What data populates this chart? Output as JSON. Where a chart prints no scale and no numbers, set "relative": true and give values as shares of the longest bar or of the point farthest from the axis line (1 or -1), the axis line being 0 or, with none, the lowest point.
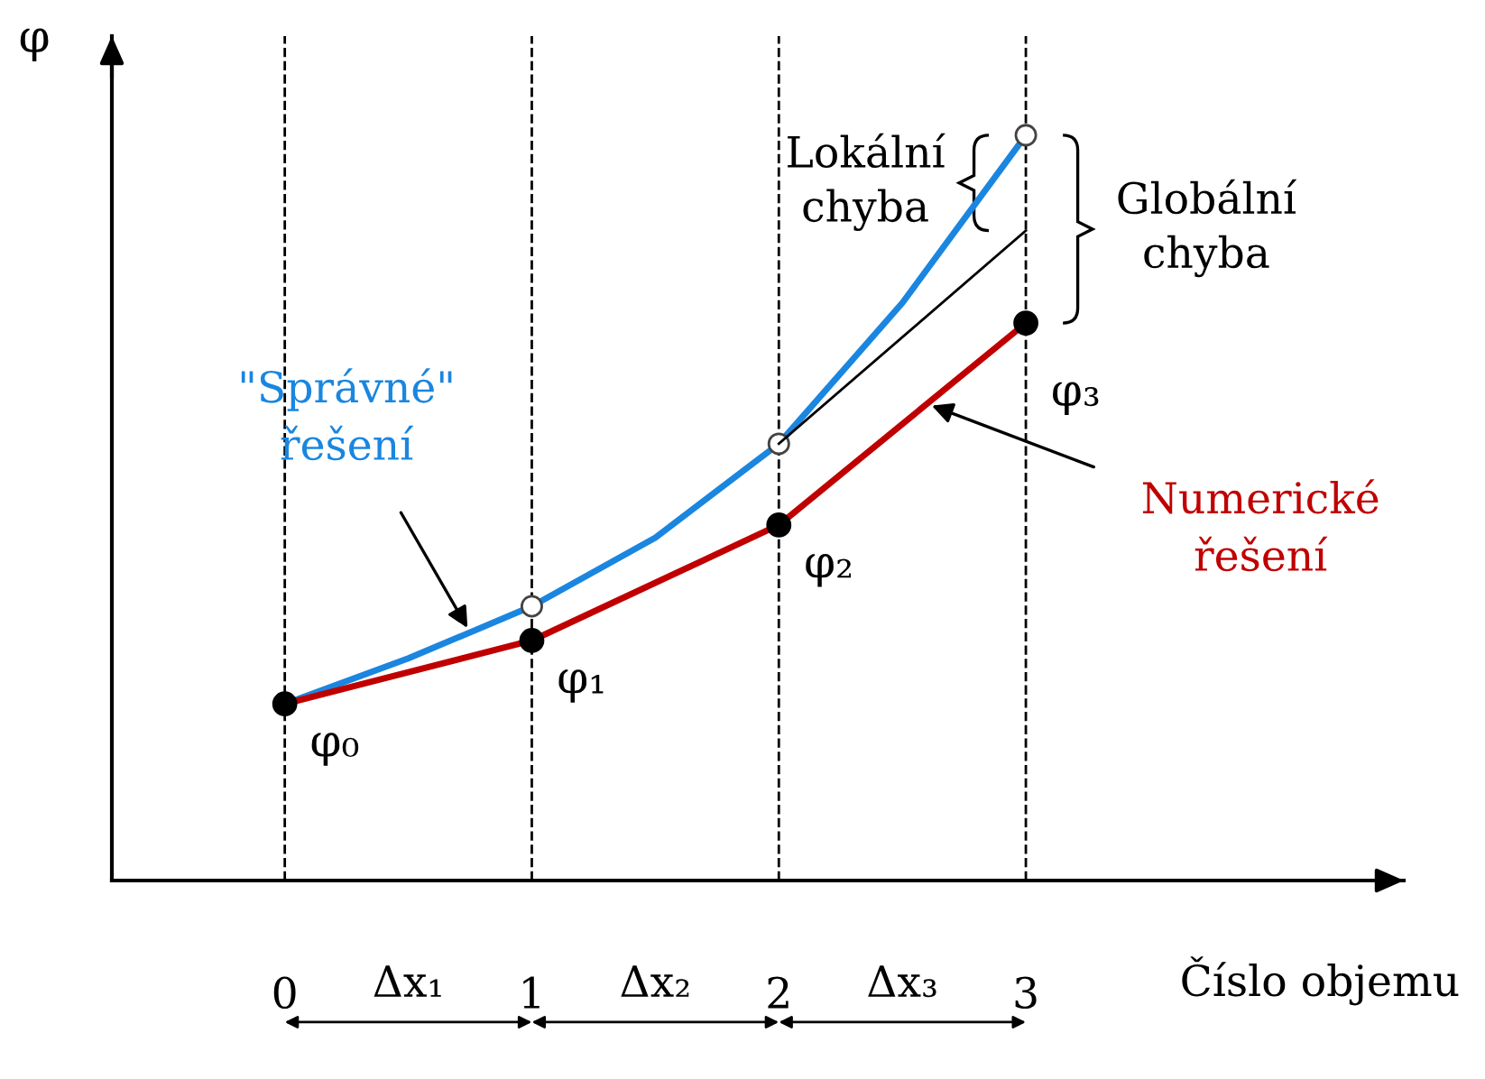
{
  "chart_data": {
    "type": "line",
    "relative": true,
    "xlabel": "Číslo objemu",
    "ylabel": "φ",
    "xlim": [
      -0.7,
      4.53
    ],
    "xticks": [
      0,
      1,
      2,
      3
    ],
    "grid": false,
    "line_style": "solid",
    "series": [
      {
        "name": "\"Správné\"\nřešení",
        "color": "#1a86e0",
        "x": [
          0,
          0.5,
          1,
          1.5,
          2,
          2.5,
          3
        ],
        "values": [
          0.237,
          0.298,
          0.368,
          0.46,
          0.586,
          0.775,
          1.0
        ],
        "marker": "circle"
      },
      {
        "color": "#000000",
        "x": [
          2,
          3
        ],
        "values": [
          0.586,
          0.872
        ],
        "marker": "none"
      },
      {
        "name": "Numerické\nřešení",
        "color": "#c00000",
        "x": [
          0,
          1,
          2,
          3
        ],
        "values": [
          0.237,
          0.322,
          0.477,
          0.748
        ],
        "marker": "circle"
      }
    ],
    "ref_lines": [
      {
        "axis": "x",
        "value": 0,
        "line_style": "dashed",
        "color": "#000000"
      },
      {
        "axis": "x",
        "value": 1,
        "line_style": "dashed",
        "color": "#000000"
      },
      {
        "axis": "x",
        "value": 2,
        "line_style": "dashed",
        "color": "#000000"
      },
      {
        "axis": "x",
        "value": 3,
        "line_style": "dashed",
        "color": "#000000"
      }
    ],
    "annotations": [
      {
        "text": "φ₀",
        "x": 0,
        "y": 0.237
      },
      {
        "text": "φ₁",
        "x": 1,
        "y": 0.322
      },
      {
        "text": "φ₂",
        "x": 2,
        "y": 0.477
      },
      {
        "text": "φ₃",
        "x": 3,
        "y": 0.748
      },
      {
        "text": "Lokální\nchyba",
        "x": 3,
        "y": 0.936
      },
      {
        "text": "Globální\nchyba",
        "x": 3,
        "y": 0.874
      },
      "Δx₁",
      "Δx₂",
      "Δx₃"
    ]
  }
}
